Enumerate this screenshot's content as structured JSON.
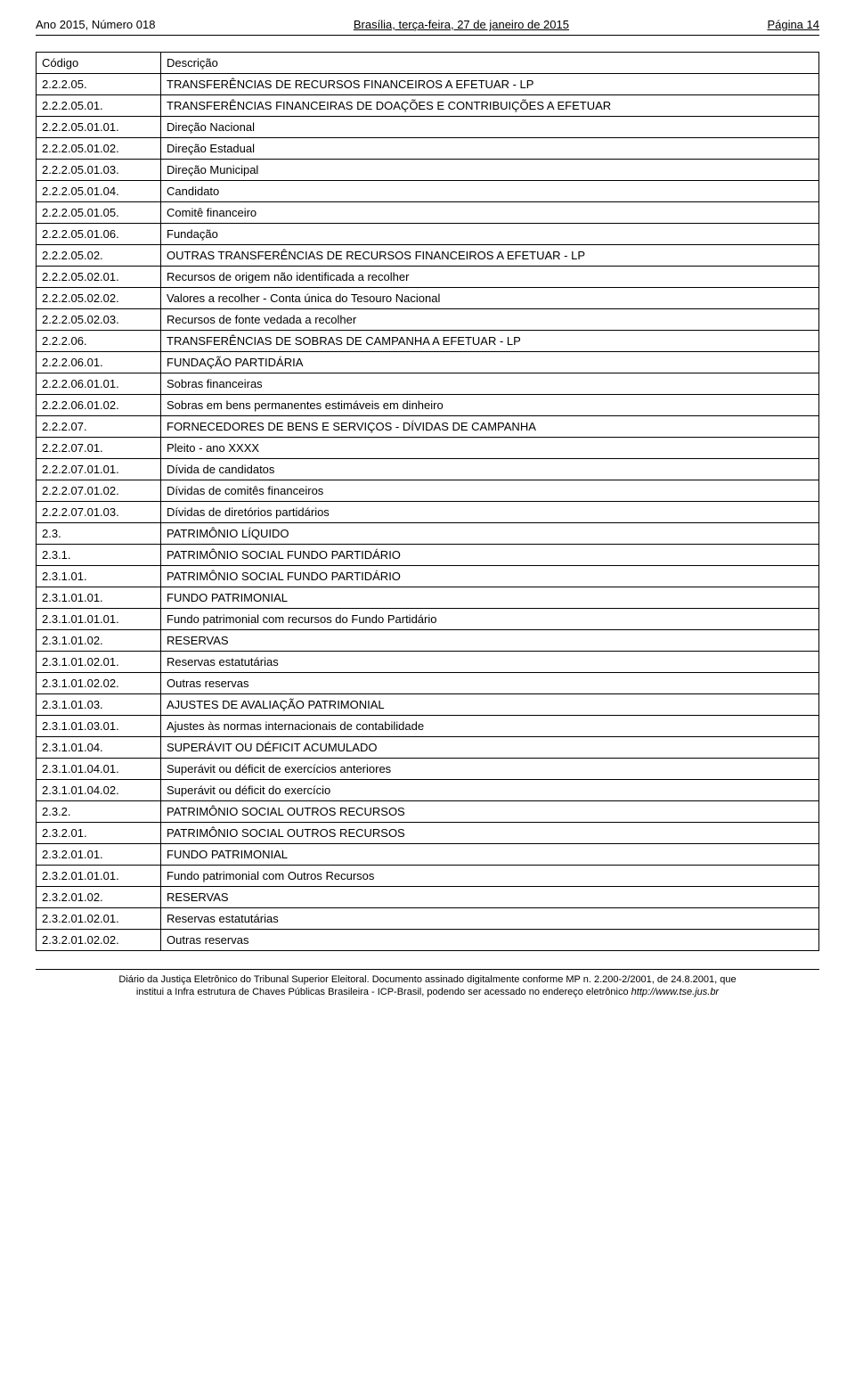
{
  "header": {
    "left": "Ano 2015, Número 018",
    "center": "Brasília, terça-feira, 27 de janeiro de 2015",
    "right": "Página 14"
  },
  "table": {
    "col_widths": {
      "code": 140
    },
    "header": {
      "code": "Código",
      "desc": "Descrição"
    },
    "rows": [
      {
        "code": "2.2.2.05.",
        "desc": "TRANSFERÊNCIAS DE RECURSOS FINANCEIROS A EFETUAR - LP"
      },
      {
        "code": "2.2.2.05.01.",
        "desc": "TRANSFERÊNCIAS FINANCEIRAS DE DOAÇÕES E CONTRIBUIÇÕES A EFETUAR"
      },
      {
        "code": "2.2.2.05.01.01.",
        "desc": "Direção Nacional"
      },
      {
        "code": "2.2.2.05.01.02.",
        "desc": "Direção Estadual"
      },
      {
        "code": "2.2.2.05.01.03.",
        "desc": "Direção Municipal"
      },
      {
        "code": "2.2.2.05.01.04.",
        "desc": "Candidato"
      },
      {
        "code": "2.2.2.05.01.05.",
        "desc": "Comitê financeiro"
      },
      {
        "code": "2.2.2.05.01.06.",
        "desc": "Fundação"
      },
      {
        "code": "2.2.2.05.02.",
        "desc": "OUTRAS TRANSFERÊNCIAS DE RECURSOS FINANCEIROS A EFETUAR - LP"
      },
      {
        "code": "2.2.2.05.02.01.",
        "desc": "Recursos de origem não identificada a recolher"
      },
      {
        "code": "2.2.2.05.02.02.",
        "desc": "Valores a recolher - Conta única do Tesouro Nacional"
      },
      {
        "code": "2.2.2.05.02.03.",
        "desc": "Recursos de fonte vedada a recolher"
      },
      {
        "code": "2.2.2.06.",
        "desc": "TRANSFERÊNCIAS DE SOBRAS DE CAMPANHA A EFETUAR - LP"
      },
      {
        "code": "2.2.2.06.01.",
        "desc": "FUNDAÇÃO PARTIDÁRIA"
      },
      {
        "code": "2.2.2.06.01.01.",
        "desc": "Sobras financeiras"
      },
      {
        "code": "2.2.2.06.01.02.",
        "desc": "Sobras em bens permanentes estimáveis em dinheiro"
      },
      {
        "code": "2.2.2.07.",
        "desc": "FORNECEDORES DE BENS E SERVIÇOS - DÍVIDAS DE CAMPANHA"
      },
      {
        "code": "2.2.2.07.01.",
        "desc": "Pleito - ano XXXX"
      },
      {
        "code": "2.2.2.07.01.01.",
        "desc": "Dívida de candidatos"
      },
      {
        "code": "2.2.2.07.01.02.",
        "desc": "Dívidas de comitês financeiros"
      },
      {
        "code": "2.2.2.07.01.03.",
        "desc": "Dívidas de diretórios partidários"
      },
      {
        "code": "2.3.",
        "desc": "PATRIMÔNIO LÍQUIDO"
      },
      {
        "code": "2.3.1.",
        "desc": "PATRIMÔNIO SOCIAL   FUNDO PARTIDÁRIO"
      },
      {
        "code": "2.3.1.01.",
        "desc": "PATRIMÔNIO SOCIAL   FUNDO PARTIDÁRIO"
      },
      {
        "code": "2.3.1.01.01.",
        "desc": "FUNDO PATRIMONIAL"
      },
      {
        "code": "2.3.1.01.01.01.",
        "desc": "Fundo patrimonial com recursos do Fundo Partidário"
      },
      {
        "code": "2.3.1.01.02.",
        "desc": "RESERVAS"
      },
      {
        "code": "2.3.1.01.02.01.",
        "desc": "Reservas estatutárias"
      },
      {
        "code": "2.3.1.01.02.02.",
        "desc": "Outras reservas"
      },
      {
        "code": "2.3.1.01.03.",
        "desc": "AJUSTES DE AVALIAÇÃO PATRIMONIAL"
      },
      {
        "code": "2.3.1.01.03.01.",
        "desc": "Ajustes às normas internacionais de contabilidade"
      },
      {
        "code": "2.3.1.01.04.",
        "desc": "SUPERÁVIT OU DÉFICIT ACUMULADO"
      },
      {
        "code": "2.3.1.01.04.01.",
        "desc": "Superávit ou déficit de exercícios anteriores"
      },
      {
        "code": "2.3.1.01.04.02.",
        "desc": "Superávit ou déficit do exercício"
      },
      {
        "code": "2.3.2.",
        "desc": "PATRIMÔNIO SOCIAL   OUTROS RECURSOS"
      },
      {
        "code": "2.3.2.01.",
        "desc": "PATRIMÔNIO SOCIAL   OUTROS RECURSOS"
      },
      {
        "code": "2.3.2.01.01.",
        "desc": "FUNDO PATRIMONIAL"
      },
      {
        "code": "2.3.2.01.01.01.",
        "desc": "Fundo patrimonial com Outros Recursos"
      },
      {
        "code": "2.3.2.01.02.",
        "desc": "RESERVAS"
      },
      {
        "code": "2.3.2.01.02.01.",
        "desc": "Reservas estatutárias"
      },
      {
        "code": "2.3.2.01.02.02.",
        "desc": "Outras reservas"
      }
    ]
  },
  "footer": {
    "line1": "Diário da Justiça Eletrônico do Tribunal Superior Eleitoral. Documento assinado digitalmente conforme MP n. 2.200-2/2001, de 24.8.2001, que",
    "line2_a": "institui a Infra estrutura de Chaves Públicas Brasileira - ICP-Brasil, podendo ser acessado no endereço eletrônico ",
    "line2_b": "http://www.tse.jus.br"
  }
}
